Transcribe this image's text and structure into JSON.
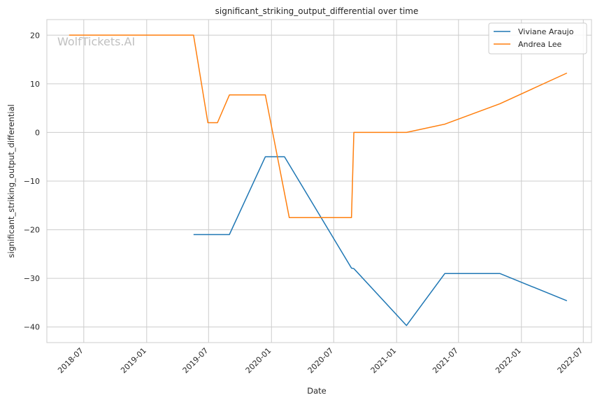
{
  "chart_data": {
    "type": "line",
    "title": "significant_striking_output_differential over time",
    "xlabel": "Date",
    "ylabel": "significant_striking_output_differential",
    "watermark": "WolfTickets.AI",
    "xlim": [
      "2018-03-15",
      "2022-07-25"
    ],
    "ylim": [
      -43.2,
      23.2
    ],
    "x_ticks": [
      "2018-07",
      "2019-01",
      "2019-07",
      "2020-01",
      "2020-07",
      "2021-01",
      "2021-07",
      "2022-01",
      "2022-07"
    ],
    "y_ticks": [
      -40,
      -30,
      -20,
      -10,
      0,
      10,
      20
    ],
    "y_tick_labels": [
      "−40",
      "−30",
      "−20",
      "−10",
      "0",
      "10",
      "20"
    ],
    "grid": true,
    "legend": "top-right",
    "series": [
      {
        "name": "Viviane Araujo",
        "color": "#1f77b4",
        "points": [
          [
            "2019-05-18",
            -21.0
          ],
          [
            "2019-08-31",
            -21.0
          ],
          [
            "2019-12-14",
            -5.0
          ],
          [
            "2020-02-08",
            -5.0
          ],
          [
            "2020-08-22",
            -27.9
          ],
          [
            "2020-08-29",
            -28.0
          ],
          [
            "2021-01-30",
            -39.7
          ],
          [
            "2021-05-22",
            -29.0
          ],
          [
            "2021-10-30",
            -29.0
          ],
          [
            "2022-05-14",
            -34.6
          ]
        ]
      },
      {
        "name": "Andrea Lee",
        "color": "#ff7f0e",
        "points": [
          [
            "2018-05-19",
            20.0
          ],
          [
            "2019-05-18",
            20.0
          ],
          [
            "2019-06-29",
            2.0
          ],
          [
            "2019-07-27",
            2.0
          ],
          [
            "2019-08-31",
            7.7
          ],
          [
            "2019-12-14",
            7.7
          ],
          [
            "2020-02-22",
            -17.5
          ],
          [
            "2020-08-22",
            -17.5
          ],
          [
            "2020-08-29",
            0.0
          ],
          [
            "2021-01-30",
            0.0
          ],
          [
            "2021-05-22",
            1.7
          ],
          [
            "2021-10-30",
            5.9
          ],
          [
            "2022-05-14",
            12.2
          ]
        ]
      }
    ]
  }
}
